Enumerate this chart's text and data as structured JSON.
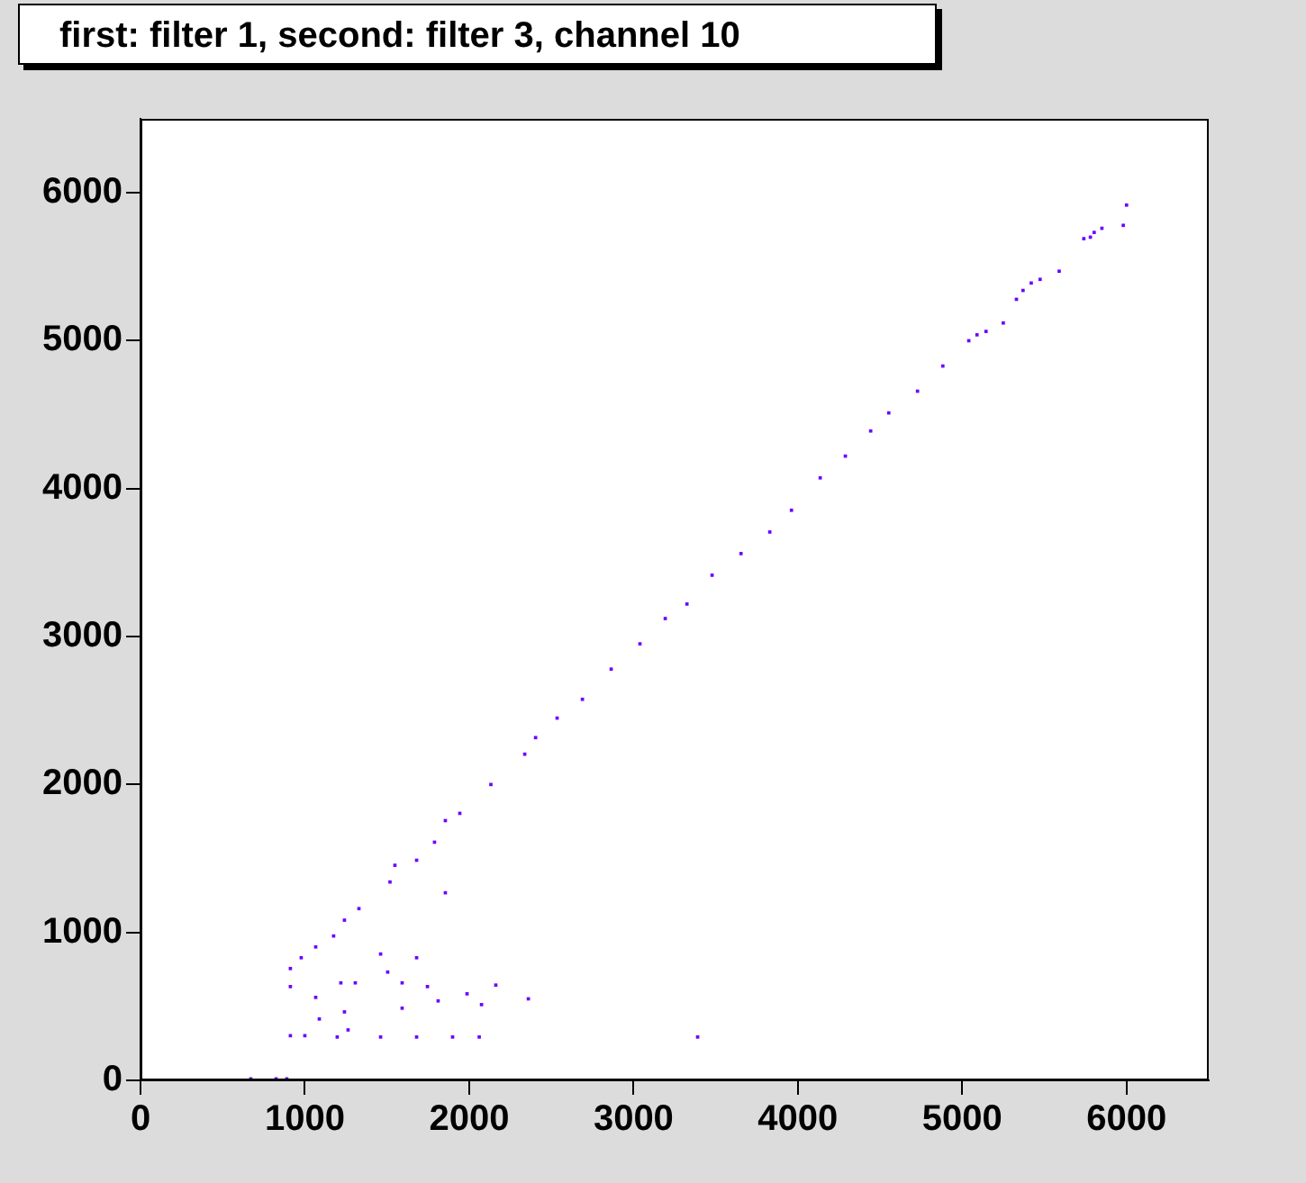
{
  "chart_data": {
    "type": "scatter",
    "title": "first: filter 1, second: filter 3, channel 10",
    "x": [
      6000,
      5803,
      5740,
      5980,
      5780,
      5850,
      5474,
      5370,
      5590,
      5330,
      5420,
      5145,
      5040,
      5250,
      5090,
      4882,
      4728,
      4553,
      4443,
      4289,
      4136,
      3961,
      3829,
      3654,
      3478,
      3325,
      3193,
      3039,
      2864,
      2689,
      2535,
      2404,
      2338,
      2132,
      1943,
      1855,
      1789,
      1680,
      1548,
      1518,
      1855,
      1329,
      1241,
      1175,
      1066,
      978,
      912,
      912,
      1066,
      1219,
      1307,
      1461,
      1592,
      1680,
      1746,
      1811,
      1987,
      2162,
      2360,
      1241,
      1504,
      1592,
      2075,
      1088,
      1263,
      912,
      1000,
      1197,
      1461,
      1680,
      1899,
      2061,
      3390,
      671,
      825,
      890
    ],
    "series": [
      {
        "color": "#6a00ff",
        "values": [
          5917,
          5732,
          5690,
          5780,
          5700,
          5760,
          5415,
          5340,
          5470,
          5280,
          5390,
          5063,
          5000,
          5120,
          5040,
          4829,
          4659,
          4512,
          4390,
          4220,
          4073,
          3854,
          3707,
          3561,
          3415,
          3220,
          3122,
          2951,
          2780,
          2576,
          2449,
          2317,
          2205,
          2000,
          1805,
          1756,
          1610,
          1488,
          1454,
          1341,
          1268,
          1161,
          1083,
          976,
          902,
          829,
          756,
          634,
          561,
          659,
          659,
          854,
          659,
          829,
          634,
          537,
          585,
          644,
          551,
          463,
          732,
          488,
          512,
          415,
          341,
          302,
          302,
          293,
          293,
          293,
          293,
          293,
          293,
          10,
          10,
          10
        ]
      }
    ],
    "xlim": [
      0,
      6500
    ],
    "ylim": [
      0,
      6500
    ],
    "xticks": [
      0,
      1000,
      2000,
      3000,
      4000,
      5000,
      6000
    ],
    "yticks": [
      0,
      1000,
      2000,
      3000,
      4000,
      5000,
      6000
    ],
    "grid": false,
    "legend": false,
    "marker": "square"
  }
}
